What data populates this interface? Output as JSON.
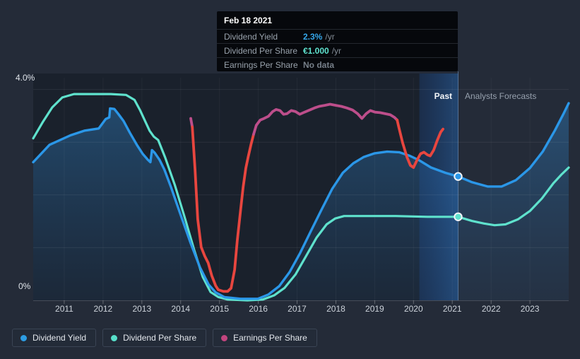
{
  "annotations": {
    "past": "Past",
    "forecasts": "Analysts Forecasts"
  },
  "tooltip": {
    "date": "Feb 18 2021",
    "rows": [
      {
        "label": "Dividend Yield",
        "value": "2.3%",
        "suffix": "/yr",
        "value_color": "#35a7ea"
      },
      {
        "label": "Dividend Per Share",
        "value": "€1.000",
        "suffix": "/yr",
        "value_color": "#5fe3cf"
      },
      {
        "label": "Earnings Per Share",
        "value": "No data",
        "suffix": "",
        "value_color": "#767f89"
      }
    ]
  },
  "legend": {
    "items": [
      {
        "label": "Dividend Yield",
        "color": "#2d9de3"
      },
      {
        "label": "Dividend Per Share",
        "color": "#57dfca"
      },
      {
        "label": "Earnings Per Share",
        "color": "#c2457f"
      }
    ]
  },
  "colors": {
    "background": "#242b38",
    "yield_line": "#2b97e8",
    "dps_line": "#5fe2cd",
    "eps_positive": "#bd4e8b",
    "eps_negative": "#e8463f",
    "divider": "#6e8fb5"
  },
  "chart_data": {
    "type": "line",
    "title": "",
    "x_axis": {
      "ticks": [
        2011,
        2012,
        2013,
        2014,
        2015,
        2016,
        2017,
        2018,
        2019,
        2020,
        2021,
        2022,
        2023
      ],
      "range": [
        2010.2,
        2024.0
      ]
    },
    "y_axis": {
      "top_label": "4.0%",
      "bottom_label": "0%",
      "unit": "%",
      "range": [
        0,
        4
      ],
      "gridlines": [
        1,
        2,
        3,
        4
      ],
      "grid": true
    },
    "divider_year": 2021.15,
    "past_band_years": [
      2020.15,
      2021.15
    ],
    "marked_date": "Feb 18 2021",
    "legend_position": "bottom-left",
    "series": [
      {
        "name": "Dividend Yield",
        "unit": "%",
        "visual_pct_per_unit": 1,
        "area": true,
        "marker": {
          "year": 2021.15,
          "value": 2.35
        },
        "points": [
          [
            2010.2,
            2.62
          ],
          [
            2010.62,
            2.95
          ],
          [
            2011.16,
            3.13
          ],
          [
            2011.53,
            3.22
          ],
          [
            2011.89,
            3.26
          ],
          [
            2012.07,
            3.44
          ],
          [
            2012.16,
            3.47
          ],
          [
            2012.18,
            3.64
          ],
          [
            2012.29,
            3.63
          ],
          [
            2012.4,
            3.53
          ],
          [
            2012.53,
            3.4
          ],
          [
            2012.69,
            3.18
          ],
          [
            2012.87,
            2.95
          ],
          [
            2013.02,
            2.78
          ],
          [
            2013.15,
            2.67
          ],
          [
            2013.22,
            2.62
          ],
          [
            2013.26,
            2.85
          ],
          [
            2013.33,
            2.8
          ],
          [
            2013.46,
            2.66
          ],
          [
            2013.58,
            2.48
          ],
          [
            2013.75,
            2.15
          ],
          [
            2014.0,
            1.62
          ],
          [
            2014.26,
            1.08
          ],
          [
            2014.5,
            0.62
          ],
          [
            2014.72,
            0.3
          ],
          [
            2014.9,
            0.15
          ],
          [
            2015.13,
            0.06
          ],
          [
            2015.54,
            0.03
          ],
          [
            2015.99,
            0.03
          ],
          [
            2016.26,
            0.11
          ],
          [
            2016.54,
            0.27
          ],
          [
            2016.81,
            0.54
          ],
          [
            2017.08,
            0.9
          ],
          [
            2017.36,
            1.32
          ],
          [
            2017.63,
            1.72
          ],
          [
            2017.9,
            2.11
          ],
          [
            2018.18,
            2.42
          ],
          [
            2018.45,
            2.6
          ],
          [
            2018.72,
            2.72
          ],
          [
            2019.0,
            2.79
          ],
          [
            2019.32,
            2.82
          ],
          [
            2019.63,
            2.81
          ],
          [
            2019.91,
            2.74
          ],
          [
            2020.14,
            2.66
          ],
          [
            2020.45,
            2.52
          ],
          [
            2020.82,
            2.42
          ],
          [
            2021.15,
            2.35
          ],
          [
            2021.51,
            2.24
          ],
          [
            2021.91,
            2.16
          ],
          [
            2022.27,
            2.16
          ],
          [
            2022.64,
            2.28
          ],
          [
            2023.0,
            2.51
          ],
          [
            2023.33,
            2.82
          ],
          [
            2023.64,
            3.22
          ],
          [
            2023.86,
            3.53
          ],
          [
            2024.0,
            3.74
          ]
        ]
      },
      {
        "name": "Dividend Per Share",
        "unit": "EUR",
        "visual_pct_per_unit": 1.584,
        "area": false,
        "marker": {
          "year": 2021.15,
          "value": 1.0
        },
        "points": [
          [
            2010.2,
            1.94
          ],
          [
            2010.44,
            2.13
          ],
          [
            2010.69,
            2.31
          ],
          [
            2010.95,
            2.43
          ],
          [
            2011.25,
            2.47
          ],
          [
            2012.2,
            2.47
          ],
          [
            2012.59,
            2.46
          ],
          [
            2012.81,
            2.4
          ],
          [
            2012.95,
            2.28
          ],
          [
            2013.08,
            2.15
          ],
          [
            2013.2,
            2.03
          ],
          [
            2013.31,
            1.96
          ],
          [
            2013.42,
            1.92
          ],
          [
            2013.6,
            1.71
          ],
          [
            2013.85,
            1.38
          ],
          [
            2014.1,
            1.0
          ],
          [
            2014.35,
            0.6
          ],
          [
            2014.57,
            0.28
          ],
          [
            2014.77,
            0.1
          ],
          [
            2014.97,
            0.04
          ],
          [
            2015.21,
            0.01
          ],
          [
            2015.72,
            0.0
          ],
          [
            2016.12,
            0.01
          ],
          [
            2016.41,
            0.06
          ],
          [
            2016.68,
            0.15
          ],
          [
            2016.96,
            0.31
          ],
          [
            2017.23,
            0.53
          ],
          [
            2017.5,
            0.75
          ],
          [
            2017.76,
            0.91
          ],
          [
            2017.98,
            0.98
          ],
          [
            2018.21,
            1.01
          ],
          [
            2018.81,
            1.01
          ],
          [
            2019.54,
            1.01
          ],
          [
            2020.36,
            1.0
          ],
          [
            2021.15,
            1.0
          ],
          [
            2021.51,
            0.95
          ],
          [
            2021.82,
            0.92
          ],
          [
            2022.09,
            0.9
          ],
          [
            2022.37,
            0.91
          ],
          [
            2022.69,
            0.97
          ],
          [
            2023.0,
            1.07
          ],
          [
            2023.31,
            1.22
          ],
          [
            2023.6,
            1.4
          ],
          [
            2023.82,
            1.51
          ],
          [
            2024.0,
            1.59
          ]
        ]
      },
      {
        "name": "Earnings Per Share",
        "unit": "visual_pct_scale_not_shown",
        "segments": [
          {
            "color": "eps_positive",
            "points": [
              [
                2014.26,
                3.45
              ],
              [
                2014.3,
                3.29
              ]
            ]
          },
          {
            "color": "eps_negative",
            "points": [
              [
                2014.3,
                3.29
              ],
              [
                2014.37,
                2.48
              ],
              [
                2014.44,
                1.54
              ],
              [
                2014.53,
                1.01
              ],
              [
                2014.62,
                0.84
              ],
              [
                2014.71,
                0.71
              ],
              [
                2014.8,
                0.47
              ],
              [
                2014.9,
                0.28
              ],
              [
                2014.97,
                0.2
              ],
              [
                2015.1,
                0.17
              ],
              [
                2015.21,
                0.17
              ],
              [
                2015.3,
                0.23
              ],
              [
                2015.39,
                0.58
              ],
              [
                2015.46,
                1.14
              ],
              [
                2015.54,
                1.68
              ],
              [
                2015.61,
                2.15
              ],
              [
                2015.68,
                2.51
              ],
              [
                2015.74,
                2.72
              ],
              [
                2015.81,
                2.95
              ],
              [
                2015.88,
                3.15
              ]
            ]
          },
          {
            "color": "eps_positive",
            "points": [
              [
                2015.88,
                3.15
              ],
              [
                2015.95,
                3.32
              ],
              [
                2016.05,
                3.42
              ],
              [
                2016.15,
                3.45
              ],
              [
                2016.26,
                3.49
              ],
              [
                2016.37,
                3.58
              ],
              [
                2016.46,
                3.62
              ],
              [
                2016.56,
                3.6
              ],
              [
                2016.65,
                3.53
              ],
              [
                2016.74,
                3.54
              ],
              [
                2016.85,
                3.6
              ],
              [
                2016.96,
                3.58
              ],
              [
                2017.07,
                3.53
              ],
              [
                2017.19,
                3.57
              ],
              [
                2017.32,
                3.61
              ],
              [
                2017.45,
                3.65
              ],
              [
                2017.57,
                3.68
              ],
              [
                2017.72,
                3.7
              ],
              [
                2017.85,
                3.72
              ],
              [
                2017.99,
                3.7
              ],
              [
                2018.14,
                3.68
              ],
              [
                2018.28,
                3.65
              ],
              [
                2018.43,
                3.61
              ],
              [
                2018.56,
                3.54
              ],
              [
                2018.67,
                3.45
              ],
              [
                2018.78,
                3.54
              ],
              [
                2018.89,
                3.6
              ],
              [
                2019.01,
                3.57
              ],
              [
                2019.14,
                3.56
              ],
              [
                2019.27,
                3.54
              ],
              [
                2019.4,
                3.52
              ],
              [
                2019.51,
                3.47
              ],
              [
                2019.58,
                3.42
              ]
            ]
          },
          {
            "color": "eps_negative",
            "points": [
              [
                2019.58,
                3.42
              ],
              [
                2019.62,
                3.29
              ],
              [
                2019.72,
                2.99
              ],
              [
                2019.83,
                2.72
              ],
              [
                2019.92,
                2.56
              ],
              [
                2020.0,
                2.52
              ],
              [
                2020.09,
                2.66
              ],
              [
                2020.18,
                2.78
              ],
              [
                2020.27,
                2.81
              ],
              [
                2020.36,
                2.76
              ],
              [
                2020.43,
                2.74
              ],
              [
                2020.52,
                2.85
              ],
              [
                2020.61,
                3.03
              ],
              [
                2020.7,
                3.19
              ],
              [
                2020.76,
                3.25
              ]
            ]
          }
        ]
      }
    ]
  }
}
